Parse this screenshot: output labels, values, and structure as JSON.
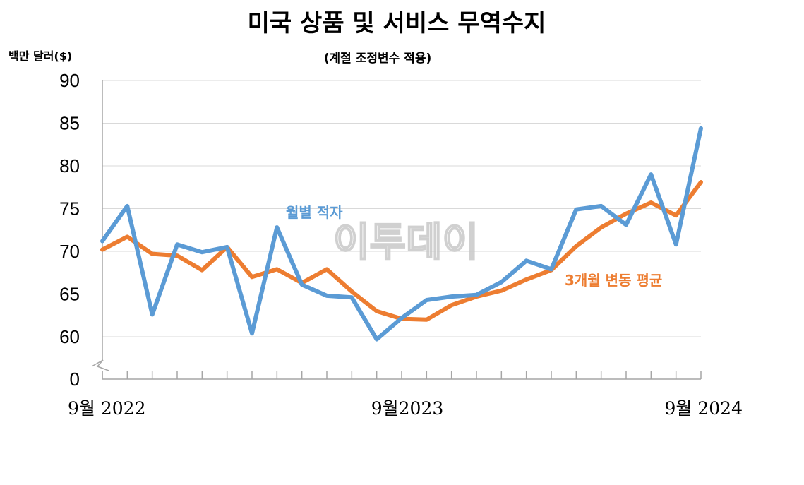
{
  "chart_data": {
    "type": "line",
    "title": "미국 상품 및 서비스 무역수지",
    "subtitle": "(계절 조정변수 적용)",
    "ylabel": "백만 달러($)",
    "ylim": [
      60,
      90
    ],
    "yticks": [
      "90",
      "85",
      "80",
      "75",
      "70",
      "65",
      "60",
      "0"
    ],
    "x_tick_labels": [
      "9월 2022",
      "9월2023",
      "9월 2024"
    ],
    "axis_break": true,
    "grid": true,
    "series": [
      {
        "name": "월별 적자",
        "color": "#5b9bd5",
        "values": [
          71.2,
          75.3,
          62.6,
          70.8,
          69.9,
          70.5,
          60.4,
          72.8,
          66.1,
          64.8,
          64.6,
          59.7,
          62.2,
          64.3,
          64.7,
          64.9,
          66.4,
          68.9,
          67.9,
          74.9,
          75.3,
          73.1,
          79.0,
          70.8,
          84.4
        ]
      },
      {
        "name": "3개월 변동 평균",
        "color": "#ed7d31",
        "values": [
          70.2,
          71.7,
          69.7,
          69.5,
          67.8,
          70.5,
          67.0,
          67.9,
          66.3,
          67.9,
          65.3,
          63.0,
          62.1,
          62.0,
          63.7,
          64.7,
          65.4,
          66.7,
          67.8,
          70.6,
          72.8,
          74.4,
          75.7,
          74.2,
          78.1
        ]
      }
    ]
  },
  "watermark": "이투데이"
}
